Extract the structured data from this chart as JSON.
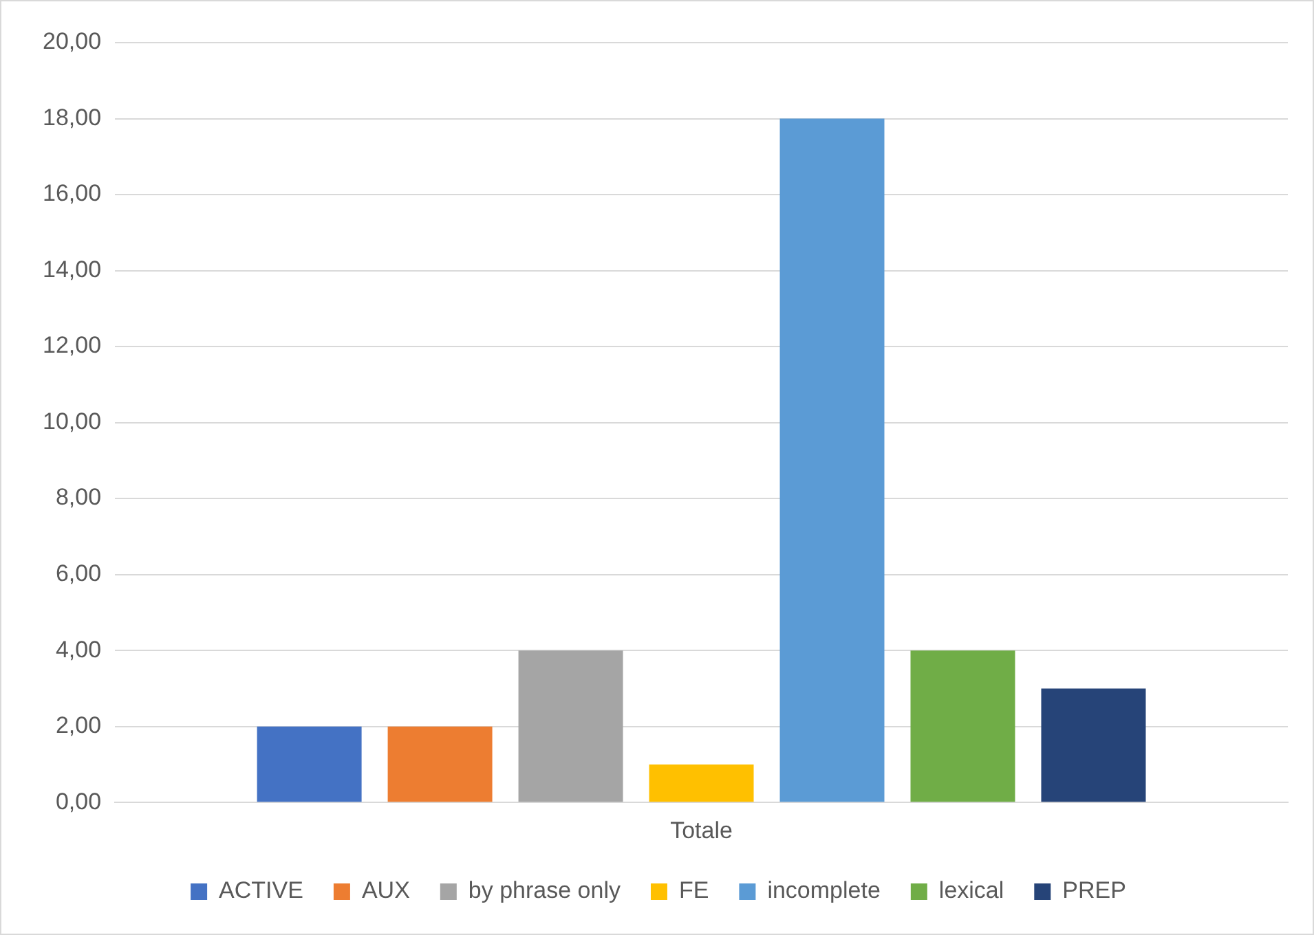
{
  "chart_data": {
    "type": "bar",
    "categories": [
      "Totale"
    ],
    "series": [
      {
        "name": "ACTIVE",
        "color": "#4472c4",
        "values": [
          2
        ]
      },
      {
        "name": "AUX",
        "color": "#ed7d31",
        "values": [
          2
        ]
      },
      {
        "name": "by phrase only",
        "color": "#a5a5a5",
        "values": [
          4
        ]
      },
      {
        "name": "FE",
        "color": "#ffc000",
        "values": [
          1
        ]
      },
      {
        "name": "incomplete",
        "color": "#5b9bd5",
        "values": [
          18
        ]
      },
      {
        "name": "lexical",
        "color": "#70ad47",
        "values": [
          4
        ]
      },
      {
        "name": "PREP",
        "color": "#264478",
        "values": [
          3
        ]
      }
    ],
    "ylim": [
      0,
      20
    ],
    "yticks": [
      {
        "value": 0,
        "label": "0,00"
      },
      {
        "value": 2,
        "label": "2,00"
      },
      {
        "value": 4,
        "label": "4,00"
      },
      {
        "value": 6,
        "label": "6,00"
      },
      {
        "value": 8,
        "label": "8,00"
      },
      {
        "value": 10,
        "label": "10,00"
      },
      {
        "value": 12,
        "label": "12,00"
      },
      {
        "value": 14,
        "label": "14,00"
      },
      {
        "value": 16,
        "label": "16,00"
      },
      {
        "value": 18,
        "label": "18,00"
      },
      {
        "value": 20,
        "label": "20,00"
      }
    ],
    "grid": "y",
    "legend": "bottom"
  }
}
